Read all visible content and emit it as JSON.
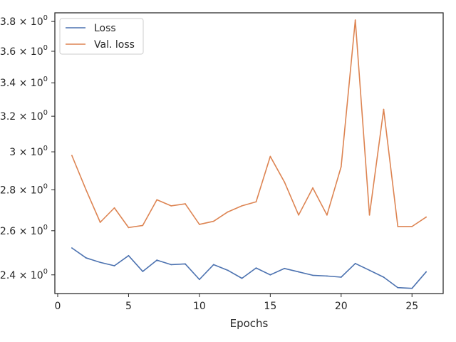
{
  "chart_data": {
    "type": "line",
    "xlabel": "Epochs",
    "ylabel": "",
    "yscale": "log",
    "xlim": [
      -0.2,
      27.2
    ],
    "ylim": [
      2.32,
      3.86
    ],
    "grid": false,
    "legend_position": "top-left",
    "x_ticks": [
      0,
      5,
      10,
      15,
      20,
      25
    ],
    "y_ticks": [
      {
        "value": 2.4,
        "mantissa": "2.4"
      },
      {
        "value": 2.6,
        "mantissa": "2.6"
      },
      {
        "value": 2.8,
        "mantissa": "2.8"
      },
      {
        "value": 3.0,
        "mantissa": "3"
      },
      {
        "value": 3.2,
        "mantissa": "3.2"
      },
      {
        "value": 3.4,
        "mantissa": "3.4"
      },
      {
        "value": 3.6,
        "mantissa": "3.6"
      },
      {
        "value": 3.8,
        "mantissa": "3.8"
      }
    ],
    "y_tick_base": "10",
    "y_tick_exponent": "0",
    "x": [
      1,
      2,
      3,
      4,
      5,
      6,
      7,
      8,
      9,
      10,
      11,
      12,
      13,
      14,
      15,
      16,
      17,
      18,
      19,
      20,
      21,
      22,
      23,
      24,
      25,
      26
    ],
    "series": [
      {
        "name": "Loss",
        "color": "#4c72b0",
        "values": [
          2.52,
          2.475,
          2.455,
          2.44,
          2.485,
          2.415,
          2.465,
          2.445,
          2.448,
          2.38,
          2.445,
          2.42,
          2.385,
          2.43,
          2.4,
          2.428,
          2.413,
          2.398,
          2.395,
          2.39,
          2.45,
          2.42,
          2.39,
          2.345,
          2.342,
          2.413
        ]
      },
      {
        "name": "Val. loss",
        "color": "#dd8452",
        "values": [
          2.98,
          2.8,
          2.64,
          2.71,
          2.615,
          2.625,
          2.75,
          2.72,
          2.73,
          2.63,
          2.645,
          2.69,
          2.72,
          2.74,
          2.975,
          2.84,
          2.675,
          2.81,
          2.675,
          2.92,
          3.81,
          2.675,
          3.24,
          2.62,
          2.62,
          2.665
        ]
      }
    ]
  }
}
